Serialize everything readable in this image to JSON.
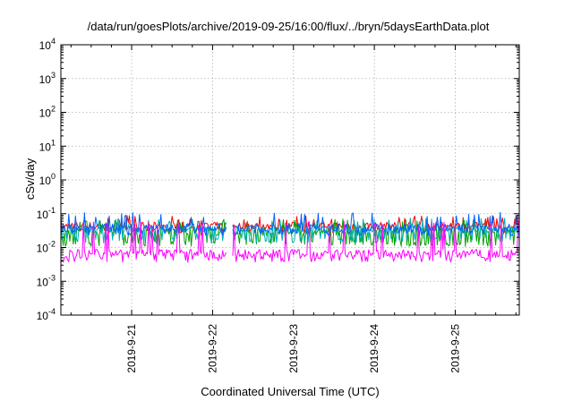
{
  "chart_data": {
    "type": "line",
    "title": "/data/run/goesPlots/archive/2019-09-25/16:00/flux/../bryn/5daysEarthData.plot",
    "xlabel": "Coordinated Universal Time (UTC)",
    "ylabel": "cSv/day",
    "yscale": "log",
    "ylim": [
      0.0001,
      10000
    ],
    "xlim": [
      "2019-09-20T03:00",
      "2019-09-25T19:00"
    ],
    "grid": true,
    "y_ticks": [
      {
        "base": "10",
        "exp": "-4"
      },
      {
        "base": "10",
        "exp": "-3"
      },
      {
        "base": "10",
        "exp": "-2"
      },
      {
        "base": "10",
        "exp": "-1"
      },
      {
        "base": "10",
        "exp": "0"
      },
      {
        "base": "10",
        "exp": "1"
      },
      {
        "base": "10",
        "exp": "2"
      },
      {
        "base": "10",
        "exp": "3"
      },
      {
        "base": "10",
        "exp": "4"
      }
    ],
    "x_ticks": [
      "2019-9-21",
      "2019-9-22",
      "2019-9-23",
      "2019-9-24",
      "2019-9-25"
    ],
    "x_tick_dates": [
      "2019-09-21T00:00",
      "2019-09-22T00:00",
      "2019-09-23T00:00",
      "2019-09-24T00:00",
      "2019-09-25T00:00"
    ],
    "data_gaps": [
      [
        "2019-09-22T04:00",
        "2019-09-22T06:00"
      ]
    ],
    "series": [
      {
        "color": "#ff0000",
        "typical": 0.045,
        "low": 0.03,
        "high": 0.09
      },
      {
        "color": "#00a000",
        "typical": 0.03,
        "low": 0.012,
        "high": 0.07
      },
      {
        "color": "#00b0b0",
        "typical": 0.035,
        "low": 0.015,
        "high": 0.075
      },
      {
        "color": "#0060ff",
        "typical": 0.04,
        "low": 0.025,
        "high": 0.11
      },
      {
        "color": "#ff00ff",
        "typical": 0.007,
        "low": 0.004,
        "high": 0.06
      }
    ]
  }
}
